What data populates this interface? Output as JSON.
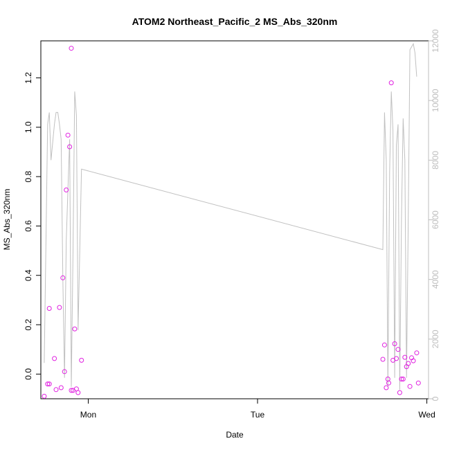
{
  "chart_data": {
    "type": "scatter",
    "title": "ATOM2 Northeast_Pacific_2 MS_Abs_320nm",
    "xlabel": "Date",
    "ylabel": "MS_Abs_320nm",
    "x_ticks": [
      "Mon",
      "Tue",
      "Wed"
    ],
    "x_tick_days": [
      1,
      2,
      3
    ],
    "xlim": [
      0.72,
      3.01
    ],
    "ylim": [
      -0.1,
      1.35
    ],
    "y_ticks": [
      0.0,
      0.2,
      0.4,
      0.6,
      0.8,
      1.0,
      1.2
    ],
    "y2lim": [
      0,
      12000
    ],
    "y2_ticks": [
      0,
      2000,
      4000,
      6000,
      8000,
      10000,
      12000
    ],
    "grid": false,
    "colors": {
      "points": "#e020e0",
      "line": "#c0c0c0",
      "right_axis": "#bdbdbd"
    },
    "series": [
      {
        "axis": "left",
        "style": "points",
        "points": [
          [
            0.74,
            -0.09
          ],
          [
            0.76,
            -0.04
          ],
          [
            0.77,
            -0.04
          ],
          [
            0.77,
            0.266
          ],
          [
            0.8,
            0.063
          ],
          [
            0.81,
            -0.063
          ],
          [
            0.83,
            0.27
          ],
          [
            0.84,
            -0.055
          ],
          [
            0.85,
            0.39
          ],
          [
            0.86,
            0.01
          ],
          [
            0.87,
            0.746
          ],
          [
            0.88,
            0.968
          ],
          [
            0.89,
            0.921
          ],
          [
            0.9,
            1.32
          ],
          [
            0.9,
            -0.066
          ],
          [
            0.91,
            -0.066
          ],
          [
            0.92,
            0.183
          ],
          [
            0.93,
            -0.06
          ],
          [
            0.94,
            -0.075
          ],
          [
            0.96,
            0.056
          ],
          [
            2.74,
            0.06
          ],
          [
            2.75,
            0.118
          ],
          [
            2.76,
            -0.055
          ],
          [
            2.77,
            -0.02
          ],
          [
            2.775,
            -0.036
          ],
          [
            2.79,
            1.18
          ],
          [
            2.8,
            0.056
          ],
          [
            2.81,
            0.123
          ],
          [
            2.82,
            0.063
          ],
          [
            2.83,
            0.1
          ],
          [
            2.84,
            -0.075
          ],
          [
            2.85,
            -0.02
          ],
          [
            2.86,
            -0.02
          ],
          [
            2.87,
            0.068
          ],
          [
            2.88,
            0.03
          ],
          [
            2.89,
            0.043
          ],
          [
            2.9,
            -0.05
          ],
          [
            2.91,
            0.066
          ],
          [
            2.92,
            0.054
          ],
          [
            2.94,
            0.086
          ],
          [
            2.95,
            -0.036
          ]
        ]
      },
      {
        "axis": "right",
        "style": "line",
        "points": [
          [
            0.74,
            1200
          ],
          [
            0.76,
            9200
          ],
          [
            0.77,
            9600
          ],
          [
            0.78,
            8000
          ],
          [
            0.8,
            9200
          ],
          [
            0.81,
            9600
          ],
          [
            0.82,
            9600
          ],
          [
            0.83,
            9200
          ],
          [
            0.84,
            8700
          ],
          [
            0.85,
            4000
          ],
          [
            0.86,
            700
          ],
          [
            0.87,
            5300
          ],
          [
            0.88,
            7000
          ],
          [
            0.89,
            8700
          ],
          [
            0.9,
            400
          ],
          [
            0.91,
            5000
          ],
          [
            0.92,
            10300
          ],
          [
            0.93,
            9500
          ],
          [
            0.94,
            2300
          ],
          [
            0.96,
            7700
          ],
          [
            2.74,
            5000
          ],
          [
            2.75,
            9600
          ],
          [
            2.76,
            8000
          ],
          [
            2.77,
            400
          ],
          [
            2.78,
            7600
          ],
          [
            2.79,
            10300
          ],
          [
            2.8,
            9000
          ],
          [
            2.81,
            700
          ],
          [
            2.82,
            8500
          ],
          [
            2.83,
            9200
          ],
          [
            2.84,
            300
          ],
          [
            2.85,
            6000
          ],
          [
            2.86,
            9400
          ],
          [
            2.87,
            8000
          ],
          [
            2.88,
            700
          ],
          [
            2.89,
            6000
          ],
          [
            2.9,
            11700
          ],
          [
            2.91,
            11800
          ],
          [
            2.92,
            11900
          ],
          [
            2.93,
            11600
          ],
          [
            2.94,
            10800
          ]
        ]
      }
    ]
  }
}
